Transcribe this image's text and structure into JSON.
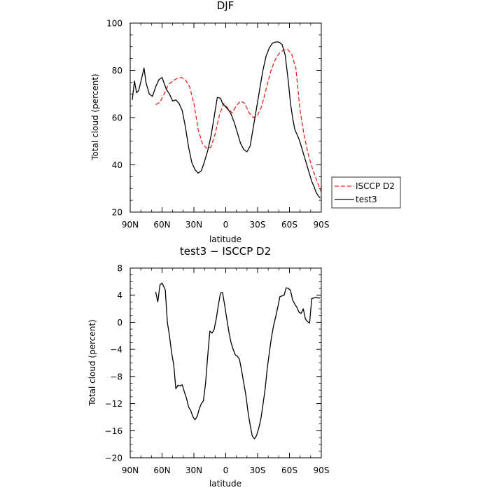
{
  "chart_data": [
    {
      "type": "line",
      "title": "DJF",
      "xlabel": "latitude",
      "ylabel": "Total cloud (percent)",
      "ylim": [
        20,
        100
      ],
      "yticks": [
        "20",
        "40",
        "60",
        "80",
        "100"
      ],
      "xlim": [
        90,
        -90
      ],
      "xticks": [
        {
          "v": 90,
          "label": "90N"
        },
        {
          "v": 60,
          "label": "60N"
        },
        {
          "v": 30,
          "label": "30N"
        },
        {
          "v": 0,
          "label": "0"
        },
        {
          "v": -30,
          "label": "30S"
        },
        {
          "v": -60,
          "label": "60S"
        },
        {
          "v": -90,
          "label": "90S"
        }
      ],
      "legend": "outside-right",
      "series": [
        {
          "name": "ISCCP D2",
          "color": "#e8221c",
          "dash": "dashed",
          "x": [
            66,
            62,
            58,
            54,
            50,
            46,
            42,
            38,
            34,
            30,
            26,
            22,
            18,
            14,
            10,
            6,
            2,
            -2,
            -6,
            -10,
            -14,
            -18,
            -22,
            -26,
            -30,
            -34,
            -38,
            -42,
            -46,
            -50,
            -54,
            -58,
            -62,
            -66,
            -70,
            -74,
            -78,
            -82,
            -86,
            -90
          ],
          "y": [
            65.5,
            66.5,
            70,
            74,
            75.5,
            76.5,
            77,
            76,
            73,
            66,
            55,
            49,
            47,
            47.5,
            53,
            61,
            66,
            64,
            62,
            65,
            67,
            66,
            62,
            60,
            61,
            65,
            72,
            79,
            84,
            87,
            88.5,
            89,
            87,
            81,
            63,
            52,
            44,
            38,
            33,
            28.5
          ]
        },
        {
          "name": "test3",
          "color": "#000000",
          "dash": "solid",
          "x": [
            88,
            86,
            84,
            82,
            79,
            77,
            75,
            72,
            69,
            66,
            63,
            60,
            56,
            53,
            50,
            47,
            44,
            41,
            38,
            35,
            32,
            29,
            26,
            23,
            21,
            19,
            17,
            14,
            11,
            8,
            5,
            3,
            1,
            -1,
            -3,
            -5,
            -8,
            -11,
            -14,
            -17,
            -20,
            -23,
            -26,
            -29,
            -32,
            -35,
            -38,
            -41,
            -44,
            -47,
            -50,
            -53,
            -56,
            -59,
            -61,
            -63,
            -65,
            -67,
            -69,
            -71,
            -73,
            -75,
            -77,
            -79,
            -81,
            -83,
            -85,
            -87,
            -89
          ],
          "y": [
            67.5,
            75.5,
            70.5,
            71.5,
            77,
            81,
            74.5,
            70,
            69,
            73,
            76,
            77,
            72,
            70,
            67,
            67.5,
            66,
            63,
            56,
            47.5,
            41,
            38,
            36.5,
            37.5,
            40,
            43,
            46,
            52,
            60,
            68.5,
            68.2,
            66,
            65,
            64,
            63,
            61.5,
            58,
            53.5,
            49,
            46.5,
            45.5,
            48,
            56,
            64,
            72,
            80,
            86,
            89.5,
            91.5,
            92,
            92,
            91,
            86.5,
            75,
            66,
            60,
            55,
            53,
            51,
            48,
            45,
            42,
            39,
            36,
            33,
            31,
            28.5,
            27,
            26
          ]
        }
      ]
    },
    {
      "type": "line",
      "title": "test3 − ISCCP D2",
      "xlabel": "latitude",
      "ylabel": "Total cloud (percent)",
      "ylim": [
        -20,
        8
      ],
      "yticks": [
        "−20",
        "−16",
        "−12",
        "−8",
        "−4",
        "0",
        "4",
        "8"
      ],
      "xlim": [
        90,
        -90
      ],
      "xticks": [
        {
          "v": 90,
          "label": "90N"
        },
        {
          "v": 60,
          "label": "60N"
        },
        {
          "v": 30,
          "label": "30N"
        },
        {
          "v": 0,
          "label": "0"
        },
        {
          "v": -30,
          "label": "30S"
        },
        {
          "v": -60,
          "label": "60S"
        },
        {
          "v": -90,
          "label": "90S"
        }
      ],
      "series": [
        {
          "color": "#000000",
          "dash": "solid",
          "x": [
            66,
            64,
            62,
            60,
            57,
            55,
            53,
            51,
            49,
            47,
            45,
            43,
            41,
            39,
            37,
            35,
            33,
            31,
            29,
            27,
            25,
            23,
            21,
            19,
            17,
            15,
            13,
            11,
            9,
            7,
            5,
            3,
            1,
            -1,
            -3,
            -5,
            -7,
            -9,
            -11,
            -13,
            -15,
            -17,
            -19,
            -21,
            -23,
            -25,
            -27,
            -29,
            -31,
            -33,
            -35,
            -37,
            -39,
            -41,
            -43,
            -45,
            -47,
            -49,
            -51,
            -53,
            -55,
            -57,
            -59,
            -61,
            -63,
            -65,
            -67,
            -69,
            -71,
            -73,
            -75,
            -77,
            -79,
            -81,
            -83,
            -85,
            -87,
            -89
          ],
          "y": [
            4.5,
            3,
            5.5,
            5.8,
            4.8,
            0,
            -2,
            -4.5,
            -6.3,
            -9.8,
            -9.3,
            -9.4,
            -9.2,
            -10.3,
            -11.2,
            -12.5,
            -13,
            -13.9,
            -14.4,
            -13.9,
            -12.8,
            -12,
            -11.6,
            -9,
            -5,
            -1.3,
            -1.6,
            -1.1,
            0.5,
            2.5,
            4.3,
            4.4,
            2.5,
            0.5,
            -1.5,
            -3,
            -4,
            -4.8,
            -5,
            -5.5,
            -7.2,
            -9,
            -10.8,
            -13.3,
            -15.2,
            -16.8,
            -17.2,
            -16.7,
            -15.7,
            -14.3,
            -12.2,
            -10,
            -7,
            -4.5,
            -2.3,
            -0.5,
            0.8,
            2.2,
            3.8,
            3.9,
            4,
            5.1,
            5,
            4.7,
            3.3,
            2.7,
            2.2,
            1.5,
            1.3,
            2,
            0.5,
            0.1,
            -0.1,
            3.5,
            3.6,
            3.7,
            3.6,
            3.6
          ]
        }
      ]
    }
  ]
}
